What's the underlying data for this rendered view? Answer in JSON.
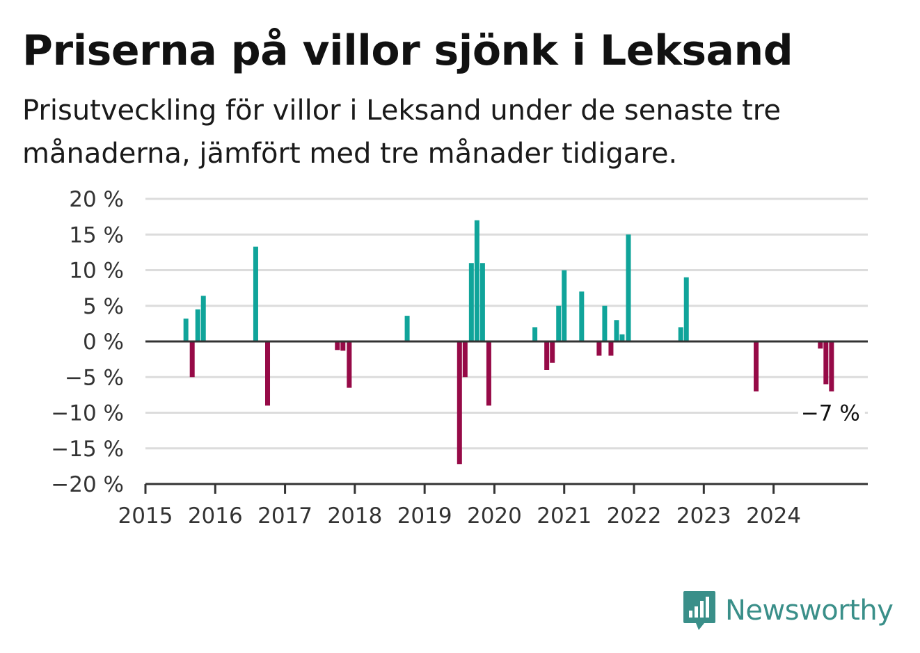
{
  "header": {
    "title": "Priserna på villor sjönk i Leksand",
    "subtitle": "Prisutveckling för villor i Leksand under de senaste tre månaderna, jämfört med tre månader tidigare."
  },
  "brand": {
    "name": "Newsworthy",
    "icon": "newsworthy-logo-icon"
  },
  "colors": {
    "positive": "#10a49a",
    "negative": "#960a47",
    "grid": "#dcdcdc",
    "axis": "#333333"
  },
  "chart_data": {
    "type": "bar",
    "ylim": [
      -20,
      20
    ],
    "xlim": [
      2015,
      2025.35
    ],
    "y_ticks": [
      {
        "value": 20,
        "label": "20 %"
      },
      {
        "value": 15,
        "label": "15 %"
      },
      {
        "value": 10,
        "label": "10 %"
      },
      {
        "value": 5,
        "label": "5 %"
      },
      {
        "value": 0,
        "label": "0 %"
      },
      {
        "value": -5,
        "label": "−5 %"
      },
      {
        "value": -10,
        "label": "−10 %"
      },
      {
        "value": -15,
        "label": "−15 %"
      },
      {
        "value": -20,
        "label": "−20 %"
      }
    ],
    "x_ticks": [
      "2015",
      "2016",
      "2017",
      "2018",
      "2019",
      "2020",
      "2021",
      "2022",
      "2023",
      "2024"
    ],
    "grid": true,
    "bars": [
      {
        "x": 2015.58,
        "value": 3.2
      },
      {
        "x": 2015.67,
        "value": -5
      },
      {
        "x": 2015.75,
        "value": 4.5
      },
      {
        "x": 2015.83,
        "value": 6.4
      },
      {
        "x": 2016.58,
        "value": 13.3
      },
      {
        "x": 2016.75,
        "value": -9
      },
      {
        "x": 2017.75,
        "value": -1.2
      },
      {
        "x": 2017.83,
        "value": -1.3
      },
      {
        "x": 2017.92,
        "value": -6.5
      },
      {
        "x": 2018.75,
        "value": 3.6
      },
      {
        "x": 2019.5,
        "value": -17.2
      },
      {
        "x": 2019.58,
        "value": -5
      },
      {
        "x": 2019.67,
        "value": 11
      },
      {
        "x": 2019.75,
        "value": 17
      },
      {
        "x": 2019.83,
        "value": 11
      },
      {
        "x": 2019.92,
        "value": -9
      },
      {
        "x": 2020.58,
        "value": 2
      },
      {
        "x": 2020.75,
        "value": -4
      },
      {
        "x": 2020.83,
        "value": -3
      },
      {
        "x": 2020.92,
        "value": 5
      },
      {
        "x": 2021.0,
        "value": 10
      },
      {
        "x": 2021.25,
        "value": 7
      },
      {
        "x": 2021.5,
        "value": -2
      },
      {
        "x": 2021.58,
        "value": 5
      },
      {
        "x": 2021.67,
        "value": -2
      },
      {
        "x": 2021.75,
        "value": 3
      },
      {
        "x": 2021.83,
        "value": 1
      },
      {
        "x": 2021.92,
        "value": 15
      },
      {
        "x": 2022.67,
        "value": 2
      },
      {
        "x": 2022.75,
        "value": 9
      },
      {
        "x": 2023.75,
        "value": -7
      },
      {
        "x": 2024.67,
        "value": -1
      },
      {
        "x": 2024.75,
        "value": -6
      },
      {
        "x": 2024.83,
        "value": -7
      }
    ],
    "annotation": {
      "label": "−7 %",
      "x": 2024.83,
      "y": -7
    }
  }
}
